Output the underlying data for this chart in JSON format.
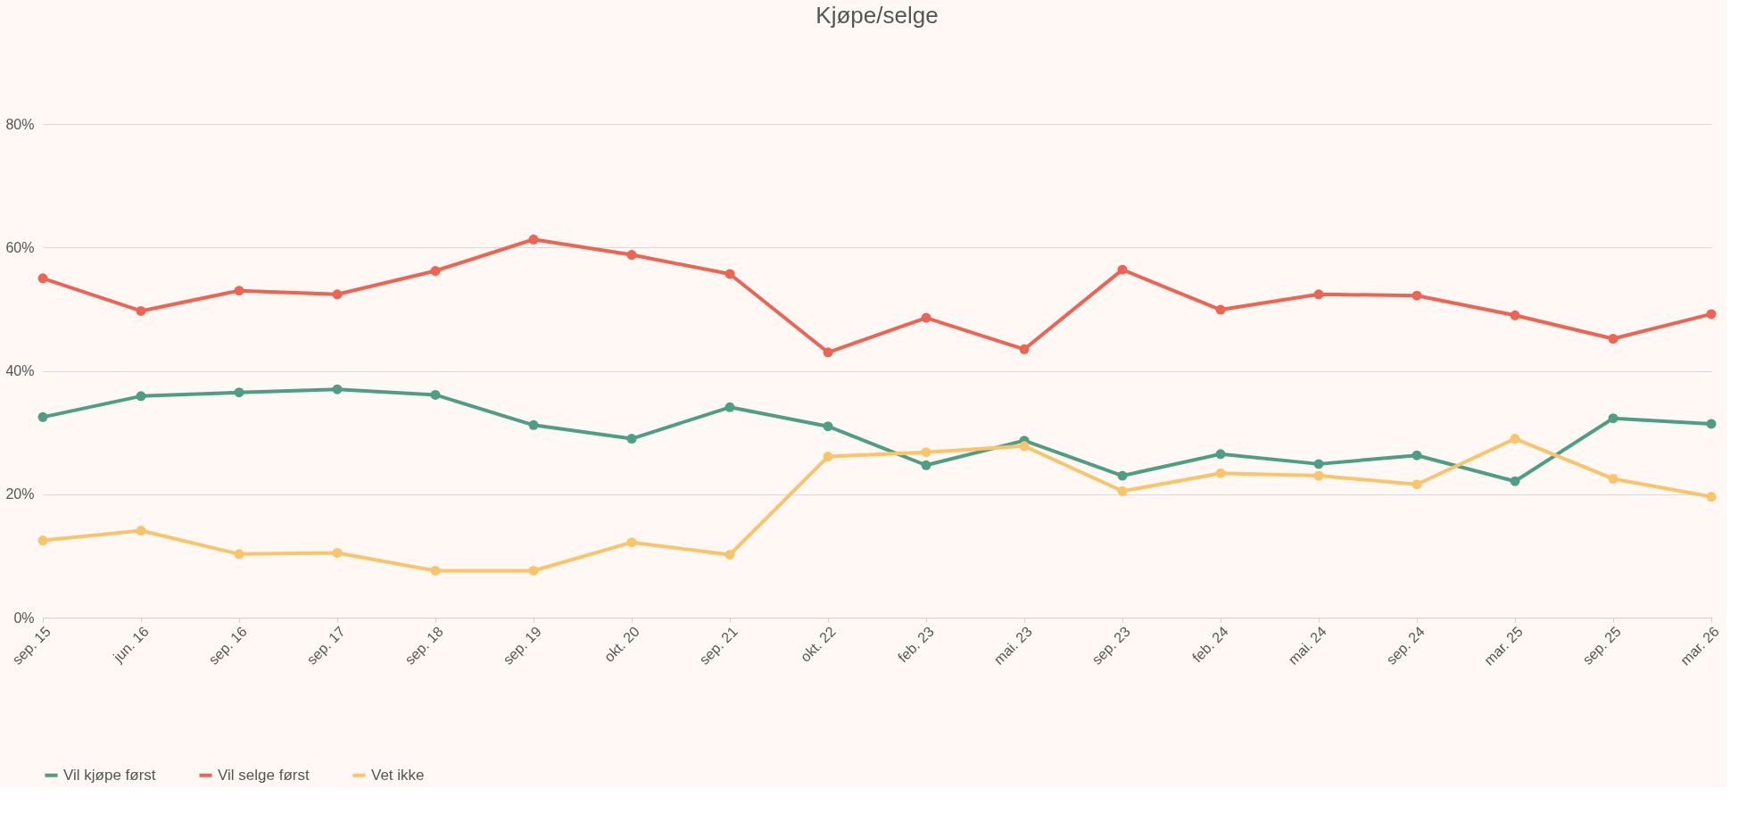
{
  "chart_data": {
    "type": "line",
    "title": "Kjøpe/selge",
    "categories": [
      "sep. 15",
      "jun. 16",
      "sep. 16",
      "sep. 17",
      "sep. 18",
      "sep. 19",
      "okt. 20",
      "sep. 21",
      "okt. 22",
      "feb. 23",
      "mai. 23",
      "sep. 23",
      "feb. 24",
      "mai. 24",
      "sep. 24",
      "mar. 25",
      "sep. 25",
      "mar. 26"
    ],
    "series": [
      {
        "name": "Vil kjøpe først",
        "color": "#4e9e86",
        "values": [
          32.5,
          35.9,
          36.5,
          37.0,
          36.1,
          31.2,
          29.0,
          34.1,
          31.0,
          24.7,
          28.7,
          23.0,
          26.5,
          24.9,
          26.3,
          22.1,
          32.3,
          31.4
        ]
      },
      {
        "name": "Vil selge først",
        "color": "#ee6352",
        "values": [
          55.0,
          49.7,
          53.0,
          52.4,
          56.2,
          61.3,
          58.8,
          55.7,
          43.0,
          48.6,
          43.5,
          56.4,
          49.9,
          52.4,
          52.2,
          49.0,
          45.2,
          49.2
        ]
      },
      {
        "name": "Vet ikke",
        "color": "#fac46a",
        "values": [
          12.5,
          14.1,
          10.3,
          10.5,
          7.6,
          7.6,
          12.2,
          10.2,
          26.1,
          26.8,
          27.8,
          20.5,
          23.4,
          23.0,
          21.6,
          29.0,
          22.5,
          19.6
        ]
      }
    ],
    "ylim": [
      0,
      80
    ],
    "yticks": [
      {
        "value": 0,
        "label": "0%"
      },
      {
        "value": 20,
        "label": "20%"
      },
      {
        "value": 40,
        "label": "40%"
      },
      {
        "value": 60,
        "label": "60%"
      },
      {
        "value": 80,
        "label": "80%"
      }
    ],
    "grid": "y",
    "legend": "bottom",
    "marker": "circle",
    "line_style": "solid"
  }
}
